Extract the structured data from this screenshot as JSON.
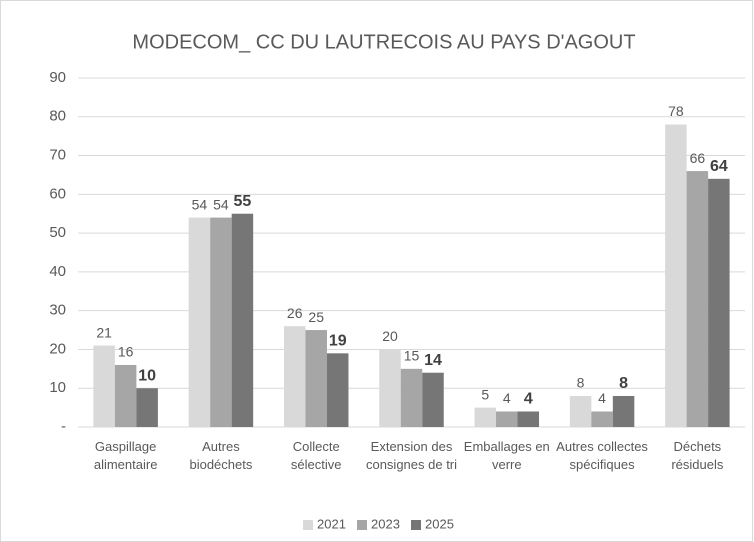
{
  "chart_data": {
    "type": "bar",
    "title": "MODECOM_ CC DU LAUTRECOIS AU PAYS D'AGOUT",
    "categories": [
      "Gaspillage alimentaire",
      "Autres biodéchets",
      "Collecte sélective",
      "Extension des consignes de tri",
      "Emballages en verre",
      "Autres collectes spécifiques",
      "Déchets résiduels"
    ],
    "series": [
      {
        "name": "2021",
        "color": "#d9d9d9",
        "values": [
          21,
          54,
          26,
          20,
          5,
          8,
          78
        ]
      },
      {
        "name": "2023",
        "color": "#a6a6a6",
        "values": [
          16,
          54,
          25,
          15,
          4,
          4,
          66
        ]
      },
      {
        "name": "2025",
        "color": "#767676",
        "values": [
          10,
          55,
          19,
          14,
          4,
          8,
          64
        ]
      }
    ],
    "ylim": [
      0,
      90
    ],
    "yticks": [
      {
        "value": 0,
        "label": "-"
      },
      10,
      20,
      30,
      40,
      50,
      60,
      70,
      80,
      90
    ],
    "grid": true,
    "legend": "bottom"
  }
}
